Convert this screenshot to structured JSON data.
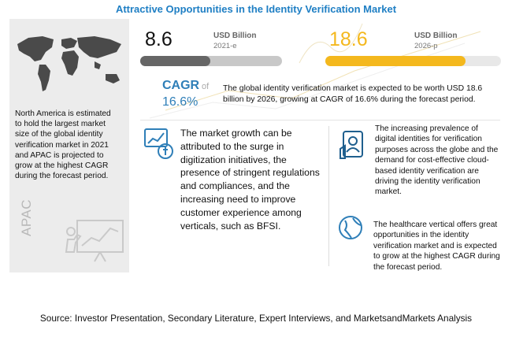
{
  "title": "Attractive Opportunities in the Identity Verification Market",
  "left_panel": {
    "summary": "North America is estimated to hold the largest market size of the global identity verification market in 2021 and APAC is projected to grow at the highest CAGR during the forecast period.",
    "region_label": "APAC"
  },
  "market_2021": {
    "value": "8.6",
    "unit": "USD Billion",
    "year": "2021-e",
    "bar_fraction": 0.494
  },
  "market_2026": {
    "value": "18.6",
    "unit": "USD Billion",
    "year": "2026-p",
    "bar_fraction": 0.8
  },
  "cagr": {
    "label": "CAGR",
    "of": "of",
    "value": "16.6%",
    "text": "The global identity verification market is expected to be worth USD 18.6 billion by 2026, growing at CAGR of 16.6% during the forecast period."
  },
  "insights": {
    "growth": "The market growth can be attributed to the surge in digitization initiatives, the presence of stringent regulations and compliances, and the increasing need to improve customer experience among verticals, such as BFSI.",
    "identity": "The increasing prevalence of digital identities for verification purposes across the globe and the demand for cost-effective cloud-based identity verification are driving the identity verification market.",
    "healthcare": "The healthcare vertical offers great opportunities in the identity verification market and is expected to grow at the highest CAGR during the forecast period."
  },
  "source": "Source: Investor Presentation, Secondary Literature, Expert Interviews, and MarketsandMarkets Analysis",
  "colors": {
    "title": "#1f7fc4",
    "accent": "#f4b81d",
    "cagr": "#2f7fb8",
    "bar_dark": "#666666"
  },
  "icons": [
    "world-map-icon",
    "growth-chart-icon",
    "identity-card-icon",
    "globe-icon",
    "presentation-board-icon"
  ]
}
